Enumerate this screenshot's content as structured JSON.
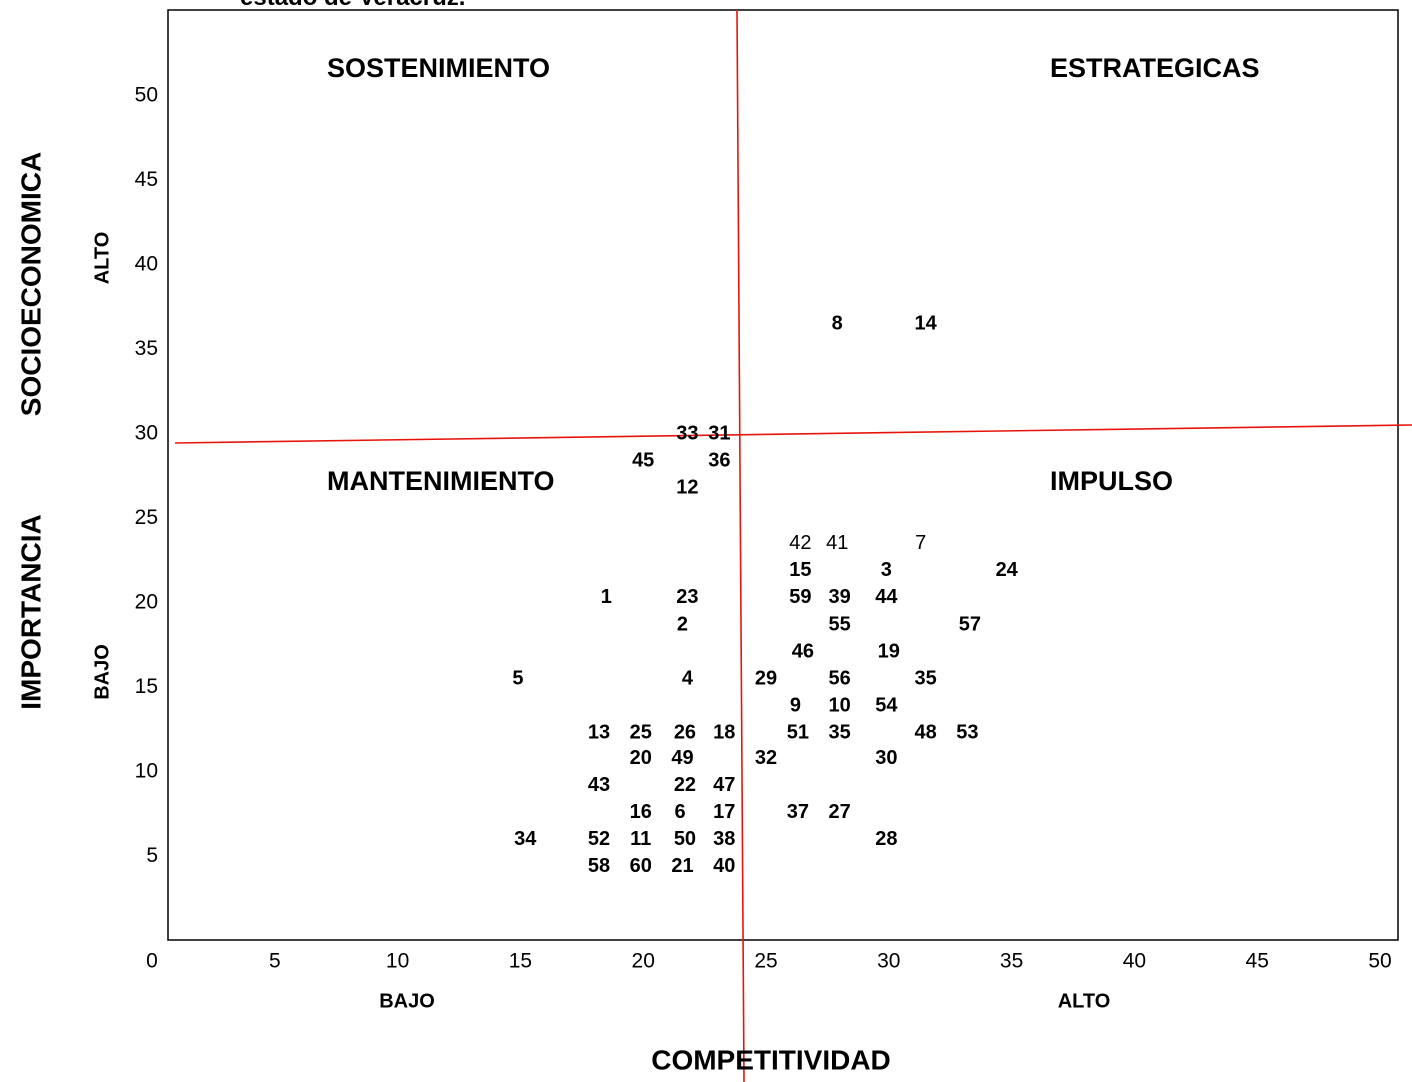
{
  "page": {
    "cut_title": "estado de Veracruz."
  },
  "chart_data": {
    "type": "scatter",
    "xlabel": "COMPETITIVIDAD",
    "ylabel_part1": "IMPORTANCIA",
    "ylabel_part2": "SOCIOECONOMICA",
    "x_low_label": "BAJO",
    "x_high_label": "ALTO",
    "y_low_label": "BAJO",
    "y_high_label": "ALTO",
    "quadrants": [
      "SOSTENIMIENTO",
      "ESTRATEGICAS",
      "MANTENIMIENTO",
      "IMPULSO"
    ],
    "quadrant_color": "#e8140c",
    "x_ticks": [
      0,
      5,
      10,
      15,
      20,
      25,
      30,
      35,
      40,
      45,
      50
    ],
    "y_ticks": [
      0,
      5,
      10,
      15,
      20,
      25,
      30,
      35,
      40,
      45,
      50
    ],
    "points": [
      {
        "label": "8",
        "x": 27.9,
        "y": 36.5,
        "bold": true
      },
      {
        "label": "14",
        "x": 31.5,
        "y": 36.5,
        "bold": true
      },
      {
        "label": "33",
        "x": 21.8,
        "y": 30.0,
        "bold": true
      },
      {
        "label": "31",
        "x": 23.1,
        "y": 30.0,
        "bold": true
      },
      {
        "label": "45",
        "x": 20.0,
        "y": 28.4,
        "bold": true
      },
      {
        "label": "36",
        "x": 23.1,
        "y": 28.4,
        "bold": true
      },
      {
        "label": "12",
        "x": 21.8,
        "y": 26.8,
        "bold": true
      },
      {
        "label": "42",
        "x": 26.4,
        "y": 23.5,
        "bold": false
      },
      {
        "label": "41",
        "x": 27.9,
        "y": 23.5,
        "bold": false
      },
      {
        "label": "7",
        "x": 31.3,
        "y": 23.5,
        "bold": false
      },
      {
        "label": "15",
        "x": 26.4,
        "y": 21.9,
        "bold": true
      },
      {
        "label": "3",
        "x": 29.9,
        "y": 21.9,
        "bold": true
      },
      {
        "label": "24",
        "x": 34.8,
        "y": 21.9,
        "bold": true
      },
      {
        "label": "1",
        "x": 18.5,
        "y": 20.3,
        "bold": true
      },
      {
        "label": "23",
        "x": 21.8,
        "y": 20.3,
        "bold": true
      },
      {
        "label": "59",
        "x": 26.4,
        "y": 20.3,
        "bold": true
      },
      {
        "label": "39",
        "x": 28.0,
        "y": 20.3,
        "bold": true
      },
      {
        "label": "44",
        "x": 29.9,
        "y": 20.3,
        "bold": true
      },
      {
        "label": "2",
        "x": 21.6,
        "y": 18.7,
        "bold": true
      },
      {
        "label": "55",
        "x": 28.0,
        "y": 18.7,
        "bold": true
      },
      {
        "label": "57",
        "x": 33.3,
        "y": 18.7,
        "bold": true
      },
      {
        "label": "46",
        "x": 26.5,
        "y": 17.1,
        "bold": true
      },
      {
        "label": "19",
        "x": 30.0,
        "y": 17.1,
        "bold": true
      },
      {
        "label": "5",
        "x": 14.9,
        "y": 15.5,
        "bold": true
      },
      {
        "label": "4",
        "x": 21.8,
        "y": 15.5,
        "bold": true
      },
      {
        "label": "29",
        "x": 25.0,
        "y": 15.5,
        "bold": true
      },
      {
        "label": "56",
        "x": 28.0,
        "y": 15.5,
        "bold": true
      },
      {
        "label": "35",
        "x": 31.5,
        "y": 15.5,
        "bold": true
      },
      {
        "label": "9",
        "x": 26.2,
        "y": 13.9,
        "bold": true
      },
      {
        "label": "10",
        "x": 28.0,
        "y": 13.9,
        "bold": true
      },
      {
        "label": "54",
        "x": 29.9,
        "y": 13.9,
        "bold": true
      },
      {
        "label": "13",
        "x": 18.2,
        "y": 12.3,
        "bold": true
      },
      {
        "label": "25",
        "x": 19.9,
        "y": 12.3,
        "bold": true
      },
      {
        "label": "26",
        "x": 21.7,
        "y": 12.3,
        "bold": true
      },
      {
        "label": "18",
        "x": 23.3,
        "y": 12.3,
        "bold": true
      },
      {
        "label": "51",
        "x": 26.3,
        "y": 12.3,
        "bold": true
      },
      {
        "label": "35",
        "x": 28.0,
        "y": 12.3,
        "bold": true
      },
      {
        "label": "48",
        "x": 31.5,
        "y": 12.3,
        "bold": true
      },
      {
        "label": "53",
        "x": 33.2,
        "y": 12.3,
        "bold": true
      },
      {
        "label": "20",
        "x": 19.9,
        "y": 10.8,
        "bold": true
      },
      {
        "label": "49",
        "x": 21.6,
        "y": 10.8,
        "bold": true
      },
      {
        "label": "32",
        "x": 25.0,
        "y": 10.8,
        "bold": true
      },
      {
        "label": "30",
        "x": 29.9,
        "y": 10.8,
        "bold": true
      },
      {
        "label": "43",
        "x": 18.2,
        "y": 9.2,
        "bold": true
      },
      {
        "label": "22",
        "x": 21.7,
        "y": 9.2,
        "bold": true
      },
      {
        "label": "47",
        "x": 23.3,
        "y": 9.2,
        "bold": true
      },
      {
        "label": "16",
        "x": 19.9,
        "y": 7.6,
        "bold": true
      },
      {
        "label": "6",
        "x": 21.5,
        "y": 7.6,
        "bold": true
      },
      {
        "label": "17",
        "x": 23.3,
        "y": 7.6,
        "bold": true
      },
      {
        "label": "37",
        "x": 26.3,
        "y": 7.6,
        "bold": true
      },
      {
        "label": "27",
        "x": 28.0,
        "y": 7.6,
        "bold": true
      },
      {
        "label": "34",
        "x": 15.2,
        "y": 6.0,
        "bold": true
      },
      {
        "label": "52",
        "x": 18.2,
        "y": 6.0,
        "bold": true
      },
      {
        "label": "11",
        "x": 19.9,
        "y": 6.0,
        "bold": true
      },
      {
        "label": "50",
        "x": 21.7,
        "y": 6.0,
        "bold": true
      },
      {
        "label": "38",
        "x": 23.3,
        "y": 6.0,
        "bold": true
      },
      {
        "label": "28",
        "x": 29.9,
        "y": 6.0,
        "bold": true
      },
      {
        "label": "58",
        "x": 18.2,
        "y": 4.4,
        "bold": true
      },
      {
        "label": "60",
        "x": 19.9,
        "y": 4.4,
        "bold": true
      },
      {
        "label": "21",
        "x": 21.6,
        "y": 4.4,
        "bold": true
      },
      {
        "label": "40",
        "x": 23.3,
        "y": 4.4,
        "bold": true
      }
    ]
  }
}
